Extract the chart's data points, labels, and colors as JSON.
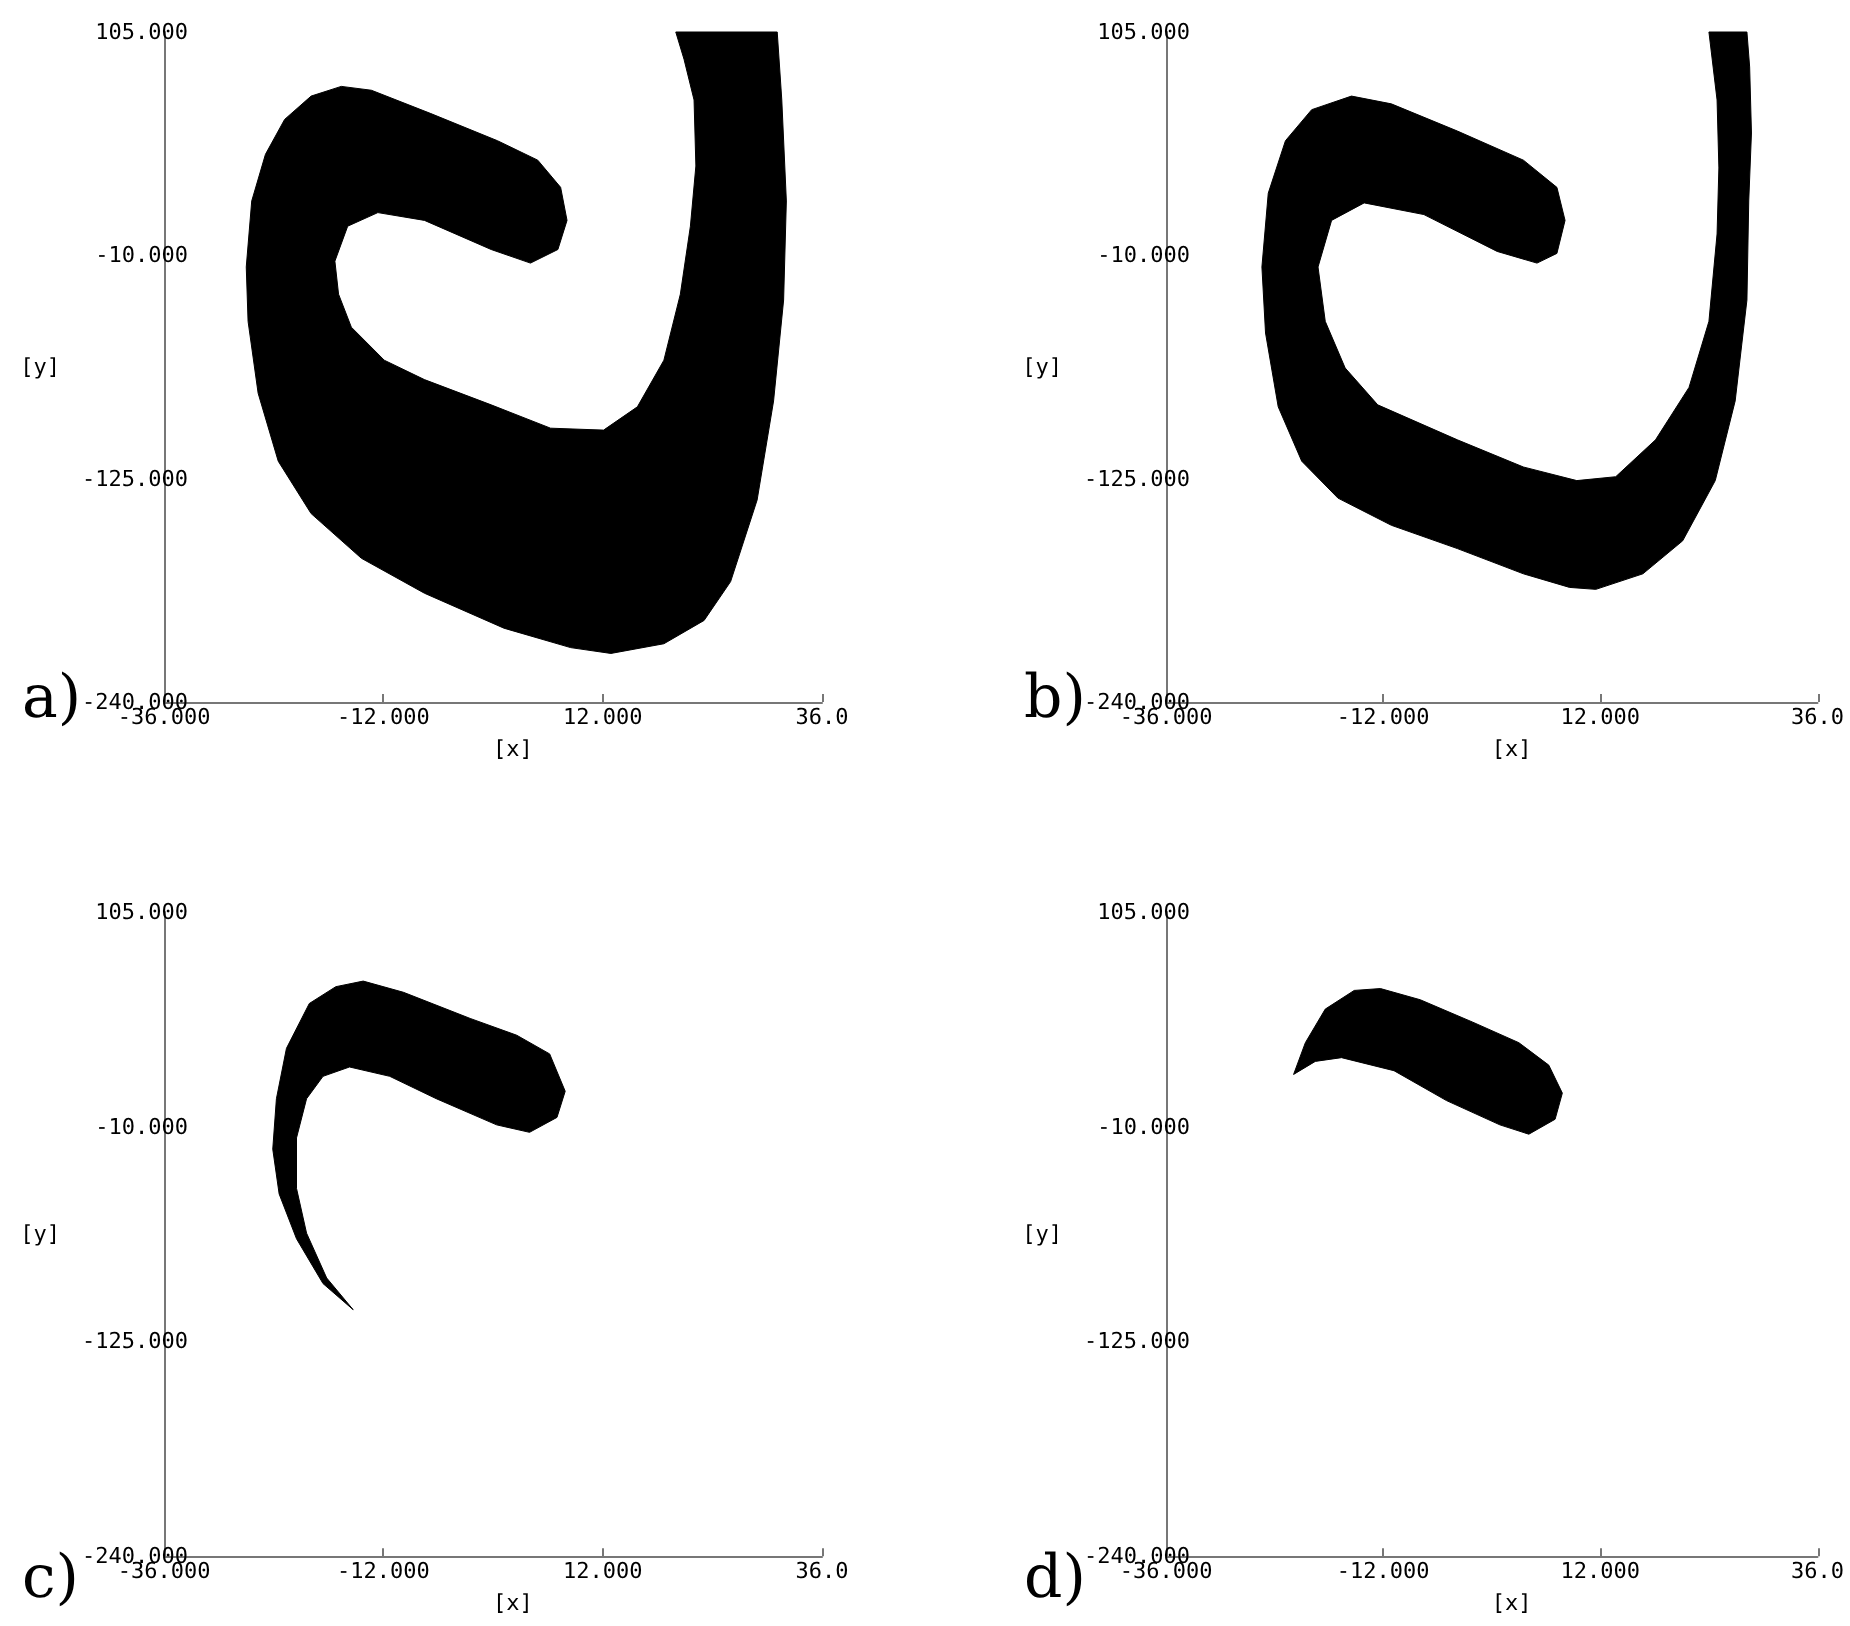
{
  "chart_data": [
    {
      "type": "area",
      "title": "a)",
      "xlabel": "[x]",
      "ylabel": "[y]",
      "xlim": [
        -36,
        36
      ],
      "ylim": [
        -240,
        105
      ],
      "xticks": [
        {
          "value": -36,
          "label": "-36.000"
        },
        {
          "value": -12,
          "label": "-12.000"
        },
        {
          "value": 12,
          "label": "12.000"
        },
        {
          "value": 36,
          "label": "36.0"
        }
      ],
      "yticks": [
        {
          "value": -240,
          "label": "-240.000"
        },
        {
          "value": -125,
          "label": "-125.000"
        },
        {
          "value": -10,
          "label": "-10.000"
        },
        {
          "value": 105,
          "label": "105.000"
        }
      ],
      "grid": false,
      "series": [
        {
          "color": "#000000",
          "x": [
            20.0,
            31.1,
            31.6,
            32.1,
            31.8,
            30.7,
            28.9,
            26.0,
            23.1,
            18.7,
            12.9,
            8.5,
            1.2,
            -7.5,
            -14.4,
            -19.9,
            -23.5,
            -25.7,
            -26.8,
            -27.0,
            -26.4,
            -24.9,
            -22.8,
            -19.9,
            -16.6,
            -13.3,
            -6.8,
            0.5,
            4.9,
            7.4,
            8.1,
            7.1,
            4.1,
            -0.2,
            -7.5,
            -12.6,
            -15.9,
            -17.3,
            -16.9,
            -15.5,
            -11.9,
            -7.5,
            -0.2,
            6.3,
            12.1,
            15.8,
            18.7,
            20.5,
            21.6,
            22.2,
            22.0,
            20.9
          ],
          "values": [
            105,
            105,
            70,
            18,
            -33,
            -85,
            -136,
            -178,
            -198,
            -210,
            -215,
            -212,
            -202,
            -184,
            -166,
            -143,
            -116,
            -81,
            -44,
            -16,
            18,
            42,
            60,
            72,
            77,
            75,
            63,
            49,
            39,
            25,
            8,
            -7,
            -14,
            -7,
            8,
            12,
            5,
            -13,
            -30,
            -47,
            -64,
            -74,
            -87,
            -99,
            -100,
            -88,
            -64,
            -30,
            5,
            36,
            70,
            91
          ]
        }
      ]
    },
    {
      "type": "area",
      "title": "b)",
      "xlabel": "[x]",
      "ylabel": "[y]",
      "xlim": [
        -36,
        36
      ],
      "ylim": [
        -240,
        105
      ],
      "xticks": [
        {
          "value": -36,
          "label": "-36.000"
        },
        {
          "value": -12,
          "label": "-12.000"
        },
        {
          "value": 12,
          "label": "12.000"
        },
        {
          "value": 36,
          "label": "36.0"
        }
      ],
      "yticks": [
        {
          "value": -240,
          "label": "-240.000"
        },
        {
          "value": -125,
          "label": "-125.000"
        },
        {
          "value": -10,
          "label": "-10.000"
        },
        {
          "value": 105,
          "label": "105.000"
        }
      ],
      "grid": false,
      "series": [
        {
          "color": "#000000",
          "x": [
            24.0,
            28.2,
            28.5,
            28.7,
            28.4,
            28.2,
            26.9,
            24.7,
            21.1,
            16.7,
            11.5,
            8.6,
            3.5,
            -3.8,
            -11.1,
            -17.0,
            -21.0,
            -23.6,
            -25.0,
            -25.4,
            -24.7,
            -22.8,
            -19.9,
            -15.5,
            -11.1,
            -3.8,
            3.5,
            7.2,
            8.1,
            7.2,
            5.0,
            0.6,
            -7.5,
            -14.1,
            -17.7,
            -19.2,
            -18.4,
            -16.2,
            -12.6,
            -3.8,
            3.5,
            9.4,
            13.7,
            18.1,
            21.8,
            24.0,
            24.9,
            25.1,
            24.9
          ],
          "values": [
            105,
            105,
            87,
            53,
            18,
            -33,
            -85,
            -126,
            -157,
            -174,
            -182,
            -181,
            -174,
            -161,
            -149,
            -135,
            -116,
            -88,
            -50,
            -16,
            22,
            49,
            65,
            72,
            68,
            54,
            39,
            25,
            8,
            -9,
            -14,
            -8,
            11,
            17,
            8,
            -16,
            -44,
            -68,
            -87,
            -105,
            -119,
            -126,
            -124,
            -105,
            -78,
            -44,
            1,
            35,
            70
          ]
        }
      ]
    },
    {
      "type": "area",
      "title": "c)",
      "xlabel": "[x]",
      "ylabel": "[y]",
      "xlim": [
        -36,
        36
      ],
      "ylim": [
        -240,
        105
      ],
      "xticks": [
        {
          "value": -36,
          "label": "-36.000"
        },
        {
          "value": -12,
          "label": "-12.000"
        },
        {
          "value": 12,
          "label": "12.000"
        },
        {
          "value": 36,
          "label": "36.0"
        }
      ],
      "yticks": [
        {
          "value": -240,
          "label": "-240.000"
        },
        {
          "value": -125,
          "label": "-125.000"
        },
        {
          "value": -10,
          "label": "-10.000"
        },
        {
          "value": 105,
          "label": "105.000"
        }
      ],
      "grid": false,
      "series": [
        {
          "color": "#000000",
          "x": [
            -15.3,
            -18.6,
            -21.5,
            -23.4,
            -24.1,
            -23.7,
            -22.6,
            -20.1,
            -17.2,
            -14.2,
            -9.8,
            -2.5,
            2.6,
            6.2,
            7.9,
            7.0,
            4.0,
            0.4,
            -6.2,
            -11.3,
            -15.7,
            -18.6,
            -20.4,
            -21.5,
            -21.5,
            -20.4,
            -18.2
          ],
          "values": [
            -108,
            -94,
            -70,
            -46,
            -22,
            5,
            32,
            56,
            65,
            68,
            62,
            48,
            39,
            29,
            9,
            -5,
            -13,
            -9,
            5,
            17,
            22,
            17,
            5,
            -16,
            -43,
            -67,
            -91
          ]
        }
      ]
    },
    {
      "type": "area",
      "title": "d)",
      "xlabel": "[x]",
      "ylabel": "[y]",
      "xlim": [
        -36,
        36
      ],
      "ylim": [
        -240,
        105
      ],
      "xticks": [
        {
          "value": -36,
          "label": "-36.000"
        },
        {
          "value": -12,
          "label": "-12.000"
        },
        {
          "value": 12,
          "label": "12.000"
        },
        {
          "value": 36,
          "label": "36.0"
        }
      ],
      "yticks": [
        {
          "value": -240,
          "label": "-240.000"
        },
        {
          "value": -125,
          "label": "-125.000"
        },
        {
          "value": -10,
          "label": "-10.000"
        },
        {
          "value": 105,
          "label": "105.000"
        }
      ],
      "grid": false,
      "series": [
        {
          "color": "#000000",
          "x": [
            -21.9,
            -20.6,
            -18.4,
            -15.2,
            -12.3,
            -7.9,
            -2.1,
            3.0,
            6.3,
            7.8,
            7.0,
            4.1,
            0.9,
            -5.0,
            -10.8,
            -16.6,
            -19.5
          ],
          "values": [
            18,
            35,
            53,
            63,
            64,
            58,
            46,
            35,
            23,
            8,
            -6,
            -14,
            -9,
            4,
            20,
            27,
            25
          ]
        }
      ]
    }
  ]
}
